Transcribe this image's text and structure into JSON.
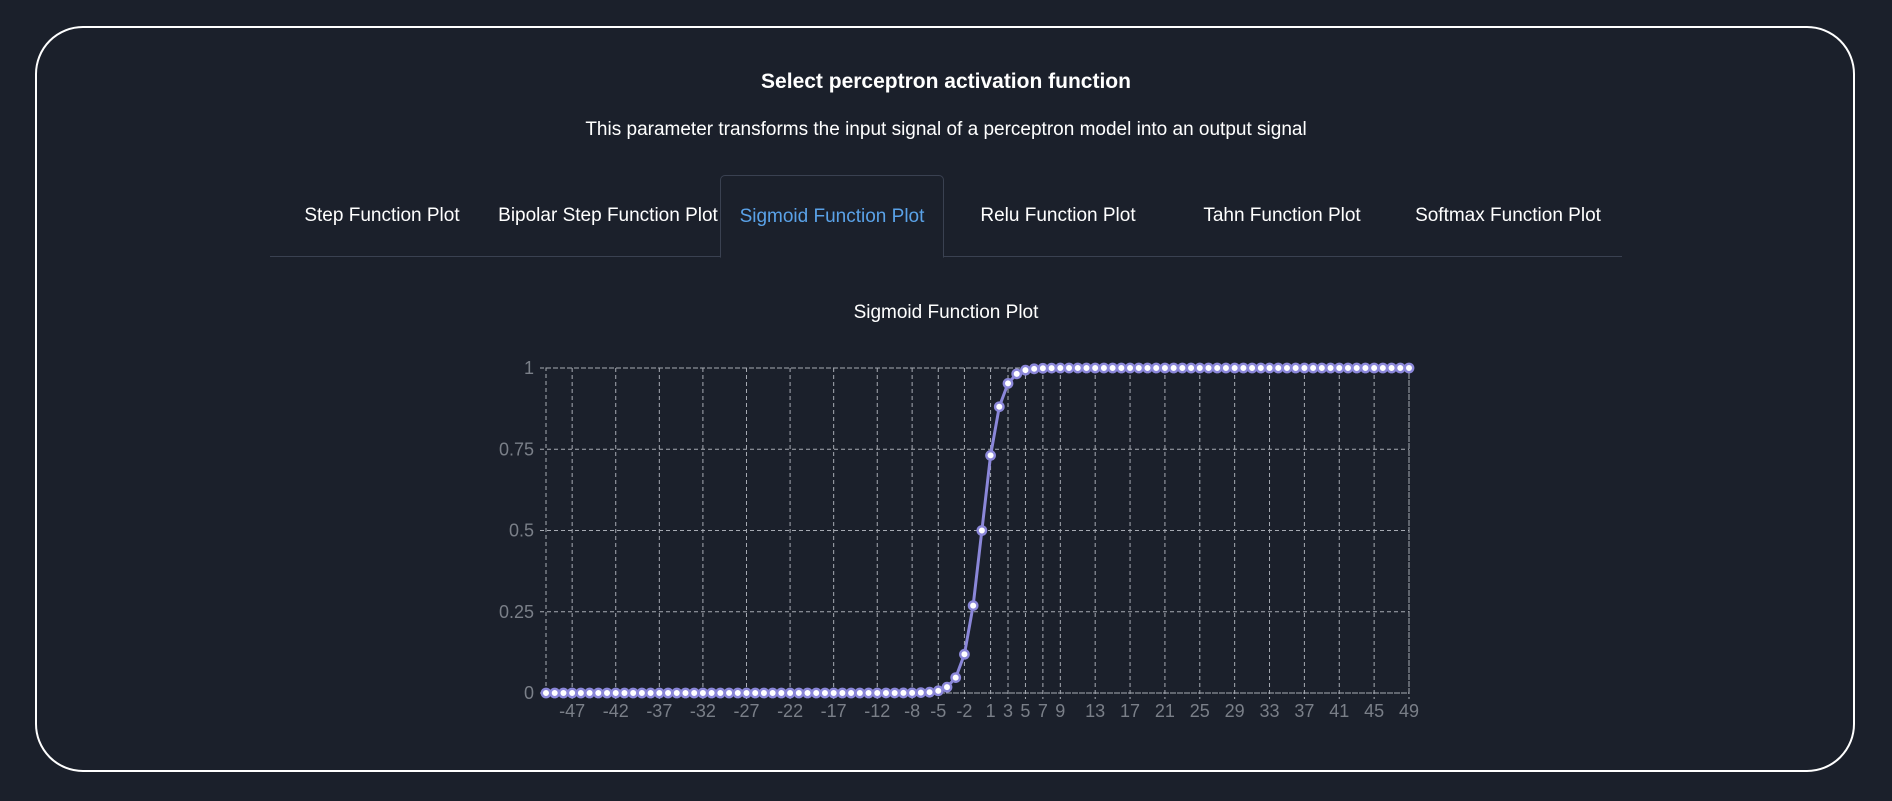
{
  "header": {
    "title": "Select perceptron activation function",
    "subtitle": "This parameter transforms the input signal of a perceptron model into an output signal"
  },
  "tabs": [
    {
      "label": "Step Function Plot",
      "active": false
    },
    {
      "label": "Bipolar Step Function Plot",
      "active": false
    },
    {
      "label": "Sigmoid Function Plot",
      "active": true
    },
    {
      "label": "Relu Function Plot",
      "active": false
    },
    {
      "label": "Tahn Function Plot",
      "active": false
    },
    {
      "label": "Softmax Function Plot",
      "active": false
    }
  ],
  "colors": {
    "background": "#1b202b",
    "accent": "#5aa2e8",
    "series": "#8b87d9",
    "text": "#ffffff",
    "tick": "#7a7f88"
  },
  "chart_data": {
    "type": "line",
    "title": "Sigmoid Function Plot",
    "xlabel": "",
    "ylabel": "",
    "x": [
      -50,
      -49,
      -48,
      -47,
      -46,
      -45,
      -44,
      -43,
      -42,
      -41,
      -40,
      -39,
      -38,
      -37,
      -36,
      -35,
      -34,
      -33,
      -32,
      -31,
      -30,
      -29,
      -28,
      -27,
      -26,
      -25,
      -24,
      -23,
      -22,
      -21,
      -20,
      -19,
      -18,
      -17,
      -16,
      -15,
      -14,
      -13,
      -12,
      -11,
      -10,
      -9,
      -8,
      -7,
      -6,
      -5,
      -4,
      -3,
      -2,
      -1,
      0,
      1,
      2,
      3,
      4,
      5,
      6,
      7,
      8,
      9,
      10,
      11,
      12,
      13,
      14,
      15,
      16,
      17,
      18,
      19,
      20,
      21,
      22,
      23,
      24,
      25,
      26,
      27,
      28,
      29,
      30,
      31,
      32,
      33,
      34,
      35,
      36,
      37,
      38,
      39,
      40,
      41,
      42,
      43,
      44,
      45,
      46,
      47,
      48,
      49
    ],
    "series": [
      {
        "function": "sigmoid",
        "values": [
          0,
          0,
          0,
          0,
          0,
          0,
          0,
          0,
          0,
          0,
          0,
          0,
          0,
          0,
          0,
          0,
          0,
          0,
          0,
          0,
          0,
          0,
          0,
          0,
          0,
          0,
          0,
          0,
          0,
          0,
          0,
          0,
          0,
          0,
          0,
          0,
          0,
          0,
          0,
          0.0001,
          0.0001,
          0.0002,
          0.0005,
          0.0012,
          0.0025,
          0.0067,
          0.018,
          0.0474,
          0.1192,
          0.2689,
          0.5,
          0.7311,
          0.8808,
          0.9526,
          0.982,
          0.9933,
          0.9975,
          0.9991,
          0.9997,
          0.9999,
          1,
          1,
          1,
          1,
          1,
          1,
          1,
          1,
          1,
          1,
          1,
          1,
          1,
          1,
          1,
          1,
          1,
          1,
          1,
          1,
          1,
          1,
          1,
          1,
          1,
          1,
          1,
          1,
          1,
          1,
          1,
          1,
          1,
          1,
          1,
          1,
          1,
          1,
          1,
          1
        ]
      }
    ],
    "xticks": [
      -47,
      -42,
      -37,
      -32,
      -27,
      -22,
      -17,
      -12,
      -8,
      -5,
      -2,
      1,
      3,
      5,
      7,
      9,
      13,
      17,
      21,
      25,
      29,
      33,
      37,
      41,
      45,
      49
    ],
    "yticks": [
      0,
      0.25,
      0.5,
      0.75,
      1
    ],
    "yticklabels": [
      "0",
      "0.25",
      "0.5",
      "0.75",
      "1"
    ],
    "ylim": [
      0,
      1
    ],
    "xlim": [
      -50,
      49
    ],
    "grid": true,
    "legend": "none"
  }
}
